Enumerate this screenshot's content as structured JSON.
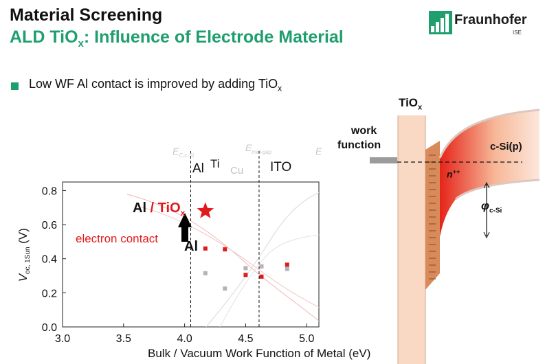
{
  "slide": {
    "title": "Material Screening",
    "subtitle_main": "ALD TiO",
    "subtitle_sub": "x",
    "subtitle_rest": ": Influence of Electrode Material",
    "logo_name": "Fraunhofer",
    "logo_sub": "ISE",
    "bullet_main": "Low WF Al contact is improved  by adding TiO",
    "bullet_sub": "x"
  },
  "plot": {
    "metal_labels": [
      {
        "text": "Al",
        "wf": 4.08
      },
      {
        "text": "Ti",
        "wf": 4.33
      },
      {
        "text": "Cu",
        "wf": 4.46
      },
      {
        "text": "ITO",
        "wf": 4.7
      }
    ],
    "band_labels": {
      "ec_main": "E",
      "ec_sub": "C,c-Si",
      "emid_main": "E",
      "emid_sub": "mid-gap",
      "ev_main": "E"
    },
    "annot_al_tio": "Al",
    "annot_slash": " / TiO",
    "annot_x": "x",
    "annot_electron": "electron contact",
    "annot_al": "Al"
  },
  "chart_data": {
    "type": "scatter",
    "xlabel": "Bulk / Vacuum Work Function of Metal (eV)",
    "ylabel_main": "V",
    "ylabel_sub": "oc, 1Sun",
    "ylabel_unit": " (V)",
    "xlim": [
      3.0,
      5.1
    ],
    "ylim": [
      0.0,
      0.85
    ],
    "xticks": [
      "3.0",
      "3.5",
      "4.0",
      "4.5",
      "5.0"
    ],
    "yticks": [
      "0.0",
      "0.2",
      "0.4",
      "0.6",
      "0.8"
    ],
    "vlines": [
      4.05,
      4.61
    ],
    "series": [
      {
        "color": "#e11b1b",
        "points": [
          [
            4.17,
            0.46
          ],
          [
            4.33,
            0.455
          ],
          [
            4.5,
            0.305
          ],
          [
            4.63,
            0.295
          ],
          [
            4.84,
            0.365
          ]
        ]
      },
      {
        "color": "#b4b4b4",
        "points": [
          [
            4.17,
            0.315
          ],
          [
            4.33,
            0.225
          ],
          [
            4.5,
            0.345
          ],
          [
            4.63,
            0.355
          ],
          [
            4.84,
            0.34
          ]
        ]
      }
    ],
    "star_point": [
      4.17,
      0.68
    ]
  },
  "band_diagram": {
    "tio_main": "TiO",
    "tio_sub": "x",
    "wf_line1": "work",
    "wf_line2": "function",
    "csi_label": "c-Si(p)",
    "npp_main": "n",
    "npp_sup": "++",
    "phi_main": "φ",
    "phi_sub": "c-Si"
  }
}
